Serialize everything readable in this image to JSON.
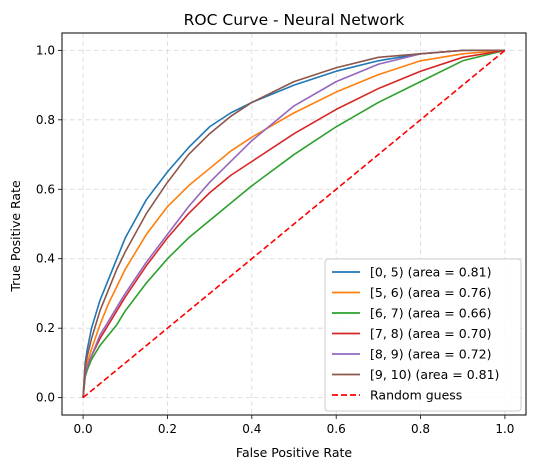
{
  "chart_data": {
    "type": "line",
    "title": "ROC Curve - Neural Network",
    "xlabel": "False Positive Rate",
    "ylabel": "True Positive Rate",
    "xlim": [
      -0.05,
      1.05
    ],
    "ylim": [
      -0.05,
      1.05
    ],
    "grid": true,
    "legend_position": "lower-right",
    "x_ticks": [
      "0.0",
      "0.2",
      "0.4",
      "0.6",
      "0.8",
      "1.0"
    ],
    "y_ticks": [
      "0.0",
      "0.2",
      "0.4",
      "0.6",
      "0.8",
      "1.0"
    ],
    "series": [
      {
        "name": "[0, 5) (area = 0.81)",
        "color": "#1f77b4",
        "x": [
          0,
          0.005,
          0.01,
          0.02,
          0.04,
          0.06,
          0.08,
          0.1,
          0.15,
          0.2,
          0.25,
          0.3,
          0.35,
          0.4,
          0.5,
          0.6,
          0.7,
          0.8,
          0.9,
          1.0
        ],
        "y": [
          0,
          0.1,
          0.14,
          0.2,
          0.28,
          0.34,
          0.4,
          0.46,
          0.57,
          0.65,
          0.72,
          0.78,
          0.82,
          0.85,
          0.9,
          0.94,
          0.97,
          0.99,
          1.0,
          1.0
        ]
      },
      {
        "name": "[5, 6) (area = 0.76)",
        "color": "#ff7f0e",
        "x": [
          0,
          0.005,
          0.01,
          0.02,
          0.04,
          0.06,
          0.08,
          0.1,
          0.15,
          0.2,
          0.25,
          0.3,
          0.35,
          0.4,
          0.5,
          0.6,
          0.7,
          0.8,
          0.9,
          1.0
        ],
        "y": [
          0,
          0.08,
          0.1,
          0.14,
          0.21,
          0.27,
          0.32,
          0.37,
          0.47,
          0.55,
          0.61,
          0.66,
          0.71,
          0.75,
          0.82,
          0.88,
          0.93,
          0.97,
          0.99,
          1.0
        ]
      },
      {
        "name": "[6, 7) (area = 0.66)",
        "color": "#2ca02c",
        "x": [
          0,
          0.005,
          0.01,
          0.02,
          0.04,
          0.06,
          0.08,
          0.1,
          0.15,
          0.2,
          0.25,
          0.3,
          0.35,
          0.4,
          0.5,
          0.6,
          0.7,
          0.8,
          0.9,
          1.0
        ],
        "y": [
          0,
          0.06,
          0.08,
          0.11,
          0.15,
          0.18,
          0.21,
          0.25,
          0.33,
          0.4,
          0.46,
          0.51,
          0.56,
          0.61,
          0.7,
          0.78,
          0.85,
          0.91,
          0.97,
          1.0
        ]
      },
      {
        "name": "[7, 8) (area = 0.70)",
        "color": "#d62728",
        "x": [
          0,
          0.005,
          0.01,
          0.02,
          0.04,
          0.06,
          0.08,
          0.1,
          0.15,
          0.2,
          0.25,
          0.3,
          0.35,
          0.4,
          0.5,
          0.6,
          0.7,
          0.8,
          0.9,
          1.0
        ],
        "y": [
          0,
          0.07,
          0.09,
          0.12,
          0.17,
          0.21,
          0.25,
          0.29,
          0.38,
          0.46,
          0.53,
          0.59,
          0.64,
          0.68,
          0.76,
          0.83,
          0.89,
          0.94,
          0.98,
          1.0
        ]
      },
      {
        "name": "[8, 9) (area = 0.72)",
        "color": "#9467bd",
        "x": [
          0,
          0.005,
          0.01,
          0.02,
          0.04,
          0.06,
          0.08,
          0.1,
          0.15,
          0.2,
          0.25,
          0.3,
          0.35,
          0.4,
          0.5,
          0.6,
          0.7,
          0.8,
          0.9,
          1.0
        ],
        "y": [
          0,
          0.07,
          0.09,
          0.12,
          0.18,
          0.22,
          0.26,
          0.3,
          0.39,
          0.47,
          0.55,
          0.62,
          0.68,
          0.74,
          0.84,
          0.91,
          0.96,
          0.99,
          1.0,
          1.0
        ]
      },
      {
        "name": "[9, 10) (area = 0.81)",
        "color": "#8c564b",
        "x": [
          0,
          0.005,
          0.01,
          0.02,
          0.04,
          0.06,
          0.08,
          0.1,
          0.15,
          0.2,
          0.25,
          0.3,
          0.35,
          0.4,
          0.5,
          0.6,
          0.7,
          0.8,
          0.9,
          1.0
        ],
        "y": [
          0,
          0.09,
          0.12,
          0.17,
          0.25,
          0.31,
          0.37,
          0.42,
          0.53,
          0.62,
          0.7,
          0.76,
          0.81,
          0.85,
          0.91,
          0.95,
          0.98,
          0.99,
          1.0,
          1.0
        ]
      },
      {
        "name": "Random guess",
        "color": "#ff0000",
        "dashed": true,
        "x": [
          0,
          1
        ],
        "y": [
          0,
          1
        ]
      }
    ]
  }
}
